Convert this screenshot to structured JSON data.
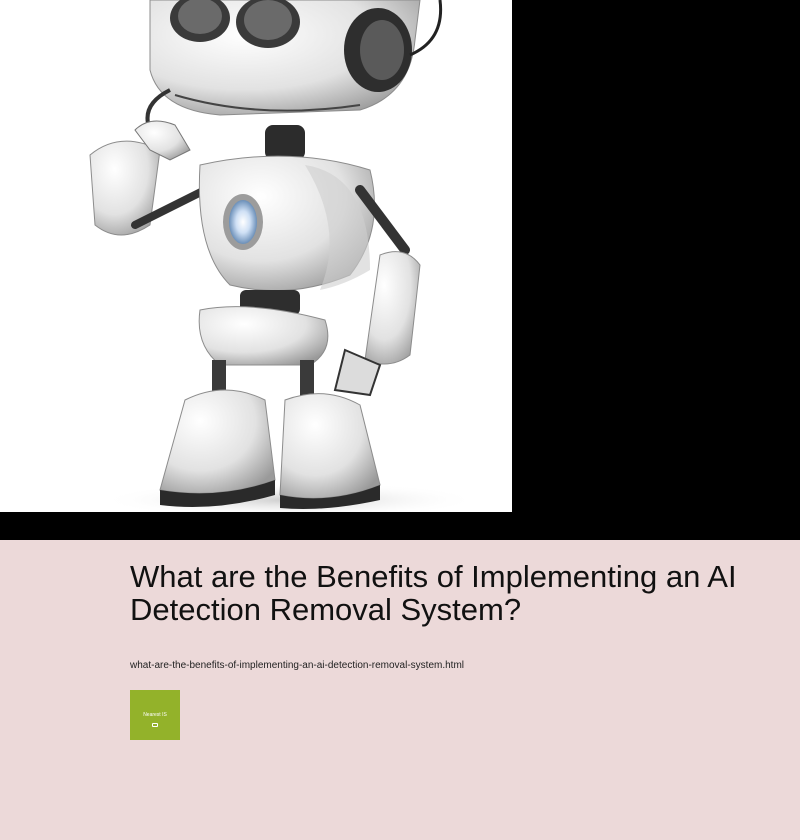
{
  "hero": {
    "image_alt": "white robot with headset"
  },
  "article": {
    "title": "What are the Benefits of Implementing an AI Detection Removal System?",
    "filename": "what-are-the-benefits-of-implementing-an-ai-detection-removal-system.html"
  },
  "tile": {
    "label": "Nearest IS",
    "icon": "map-icon"
  },
  "colors": {
    "background": "#000000",
    "content_background": "#ecd9d9",
    "tile": "#93b22a"
  }
}
